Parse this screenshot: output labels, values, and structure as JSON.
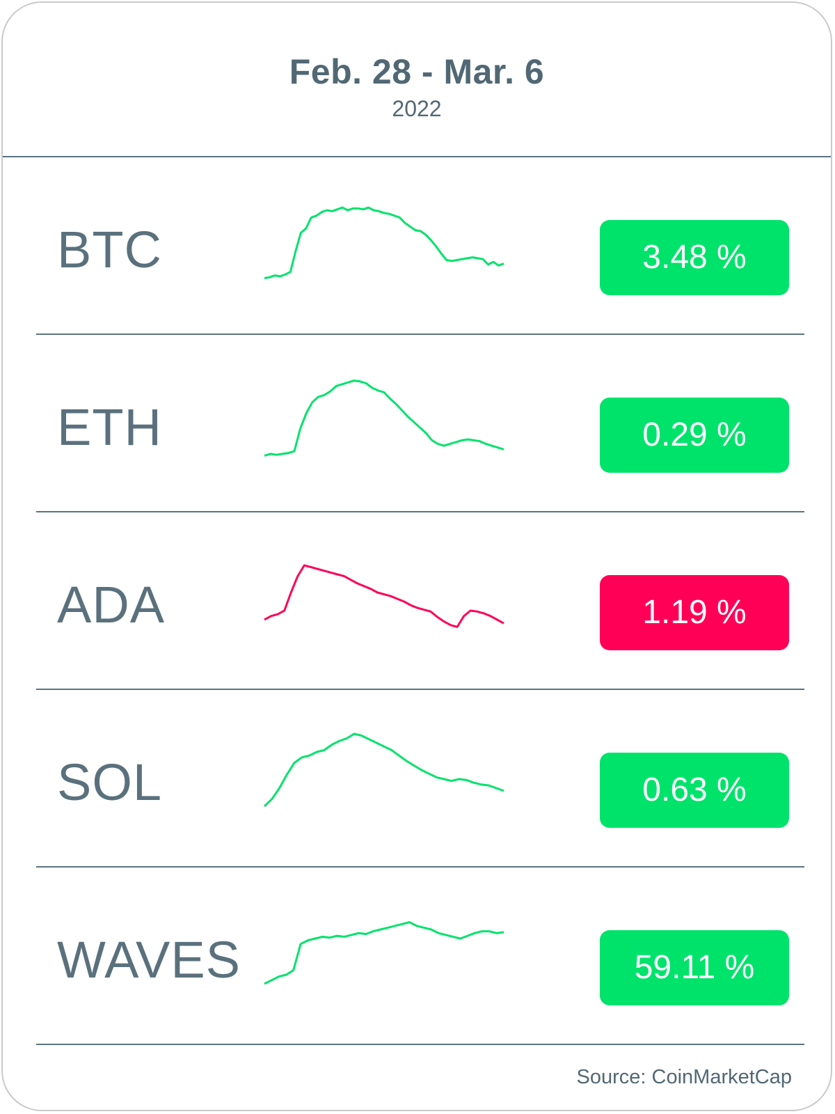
{
  "header": {
    "title": "Feb. 28 - Mar. 6",
    "subtitle": "2022"
  },
  "footer": {
    "source": "Source: CoinMarketCap"
  },
  "colors": {
    "up": "#00e36b",
    "down": "#ff0056",
    "text": "#516874",
    "line": "#5a7380"
  },
  "chart_data": [
    {
      "type": "line",
      "title": "",
      "series": [
        {
          "name": "BTC",
          "values": [
            5,
            6,
            8,
            7,
            9,
            12,
            35,
            55,
            60,
            72,
            74,
            78,
            80,
            79,
            81,
            83,
            80,
            82,
            82,
            81,
            83,
            80,
            79,
            77,
            76,
            74,
            72,
            66,
            62,
            58,
            57,
            53,
            47,
            40,
            32,
            25,
            24,
            25,
            26,
            27,
            28,
            27,
            26,
            20,
            23,
            19,
            21
          ]
        }
      ],
      "badge": "3.48 %",
      "trend": "up",
      "symbol": "BTC"
    },
    {
      "type": "line",
      "title": "",
      "series": [
        {
          "name": "ETH",
          "values": [
            5,
            7,
            6,
            7,
            8,
            10,
            35,
            52,
            64,
            70,
            72,
            76,
            82,
            84,
            86,
            88,
            87,
            85,
            80,
            77,
            75,
            68,
            62,
            55,
            48,
            42,
            36,
            30,
            22,
            18,
            16,
            18,
            20,
            22,
            23,
            22,
            21,
            18,
            16,
            14,
            12
          ]
        }
      ],
      "badge": "0.29 %",
      "trend": "up",
      "symbol": "ETH"
    },
    {
      "type": "line",
      "title": "",
      "series": [
        {
          "name": "ADA",
          "values": [
            20,
            24,
            26,
            30,
            50,
            68,
            80,
            78,
            76,
            74,
            72,
            70,
            68,
            64,
            60,
            57,
            54,
            50,
            48,
            46,
            43,
            40,
            36,
            33,
            31,
            29,
            23,
            18,
            14,
            12,
            24,
            30,
            29,
            27,
            24,
            20,
            16
          ]
        }
      ],
      "badge": "1.19 %",
      "trend": "down",
      "symbol": "ADA"
    },
    {
      "type": "line",
      "title": "",
      "series": [
        {
          "name": "SOL",
          "values": [
            10,
            18,
            30,
            45,
            58,
            64,
            66,
            70,
            72,
            78,
            82,
            85,
            90,
            88,
            84,
            80,
            76,
            72,
            66,
            60,
            55,
            50,
            46,
            42,
            40,
            38,
            40,
            39,
            36,
            34,
            33,
            30,
            27
          ]
        }
      ],
      "badge": "0.63 %",
      "trend": "up",
      "symbol": "SOL"
    },
    {
      "type": "line",
      "title": "",
      "series": [
        {
          "name": "WAVES",
          "values": [
            10,
            14,
            18,
            20,
            25,
            54,
            58,
            60,
            62,
            61,
            63,
            62,
            64,
            66,
            65,
            68,
            70,
            72,
            74,
            76,
            78,
            74,
            72,
            70,
            66,
            64,
            62,
            60,
            63,
            66,
            68,
            68,
            66,
            67
          ]
        }
      ],
      "badge": "59.11 %",
      "trend": "up",
      "symbol": "WAVES"
    }
  ]
}
